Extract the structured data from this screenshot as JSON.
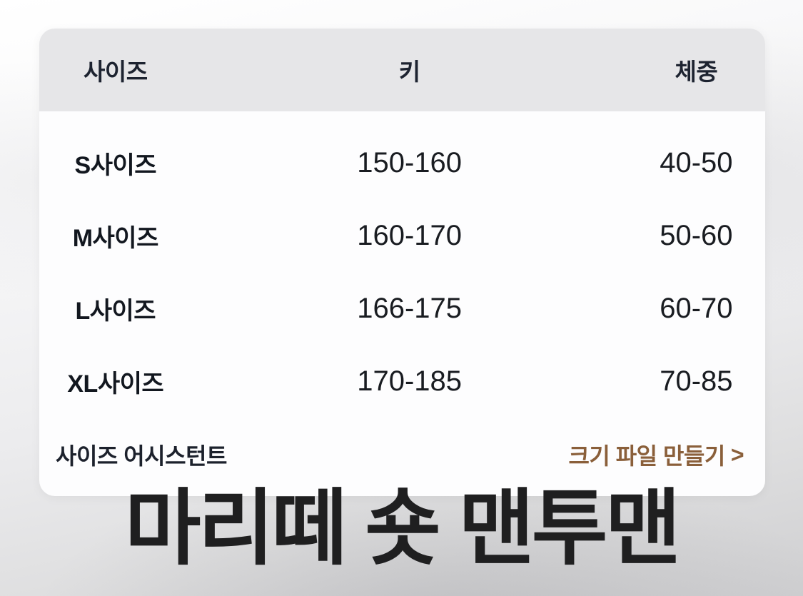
{
  "size_chart": {
    "columns": [
      "사이즈",
      "키",
      "체중"
    ],
    "rows": [
      {
        "size": "S사이즈",
        "height": "150-160",
        "weight": "40-50"
      },
      {
        "size": "M사이즈",
        "height": "160-170",
        "weight": "50-60"
      },
      {
        "size": "L사이즈",
        "height": "166-175",
        "weight": "60-70"
      },
      {
        "size": "XL사이즈",
        "height": "170-185",
        "weight": "70-85"
      }
    ],
    "footer": {
      "assistant_label": "사이즈 어시스턴트",
      "link_label": "크기 파일 만들기",
      "link_arrow": ">",
      "link_color": "#8a5f3a"
    }
  },
  "product_title": "마리떼 숏 맨투맨",
  "colors": {
    "accent_link": "#8a5f3a",
    "header_background": "#e6e6e8",
    "title_text": "#1f1f20"
  }
}
